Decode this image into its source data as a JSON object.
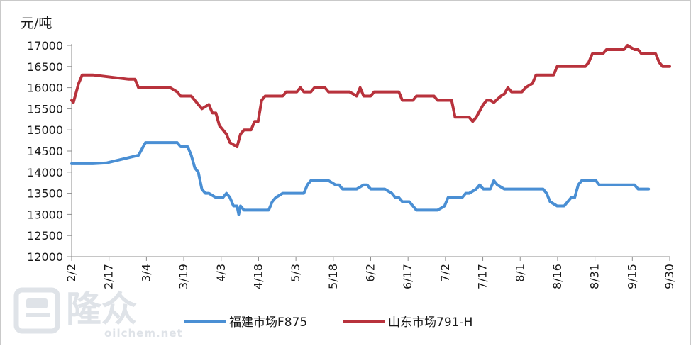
{
  "chart_data": {
    "type": "line",
    "ylabel": "元/吨",
    "ylim": [
      12000,
      17000
    ],
    "yticks": [
      12000,
      12500,
      13000,
      13500,
      14000,
      14500,
      15000,
      15500,
      16000,
      16500,
      17000
    ],
    "xticks": [
      "2/2",
      "2/17",
      "3/4",
      "3/19",
      "4/3",
      "4/18",
      "5/3",
      "5/18",
      "6/2",
      "6/17",
      "7/2",
      "7/17",
      "8/1",
      "8/16",
      "8/31",
      "9/15",
      "9/30"
    ],
    "legend_position": "bottom",
    "grid": false,
    "series": [
      {
        "name": "福建市场F875",
        "color": "#4a8fd4",
        "points": [
          [
            0,
            14200
          ],
          [
            5,
            14200
          ],
          [
            6,
            14200
          ],
          [
            10,
            14220
          ],
          [
            14,
            14300
          ],
          [
            18,
            14380
          ],
          [
            19,
            14400
          ],
          [
            20,
            14550
          ],
          [
            21,
            14700
          ],
          [
            23,
            14700
          ],
          [
            30,
            14700
          ],
          [
            31,
            14600
          ],
          [
            33,
            14600
          ],
          [
            34,
            14400
          ],
          [
            35,
            14100
          ],
          [
            36,
            14000
          ],
          [
            37,
            13600
          ],
          [
            38,
            13500
          ],
          [
            39,
            13500
          ],
          [
            40,
            13450
          ],
          [
            41,
            13400
          ],
          [
            43,
            13400
          ],
          [
            44,
            13500
          ],
          [
            45,
            13400
          ],
          [
            46,
            13200
          ],
          [
            47,
            13200
          ],
          [
            47.5,
            13000
          ],
          [
            48,
            13200
          ],
          [
            49,
            13100
          ],
          [
            53,
            13100
          ],
          [
            56,
            13100
          ],
          [
            57,
            13300
          ],
          [
            58,
            13400
          ],
          [
            59,
            13450
          ],
          [
            60,
            13500
          ],
          [
            63,
            13500
          ],
          [
            64,
            13500
          ],
          [
            66,
            13500
          ],
          [
            67,
            13700
          ],
          [
            68,
            13800
          ],
          [
            73,
            13800
          ],
          [
            74,
            13750
          ],
          [
            75,
            13700
          ],
          [
            76,
            13700
          ],
          [
            77,
            13600
          ],
          [
            80,
            13600
          ],
          [
            81,
            13600
          ],
          [
            82,
            13650
          ],
          [
            83,
            13700
          ],
          [
            84,
            13700
          ],
          [
            85,
            13600
          ],
          [
            89,
            13600
          ],
          [
            90,
            13550
          ],
          [
            91,
            13500
          ],
          [
            92,
            13400
          ],
          [
            93,
            13400
          ],
          [
            94,
            13300
          ],
          [
            96,
            13300
          ],
          [
            97,
            13200
          ],
          [
            98,
            13100
          ],
          [
            104,
            13100
          ],
          [
            105,
            13150
          ],
          [
            106,
            13200
          ],
          [
            107,
            13400
          ],
          [
            111,
            13400
          ],
          [
            112,
            13500
          ],
          [
            113,
            13500
          ],
          [
            114,
            13550
          ],
          [
            115,
            13600
          ],
          [
            116,
            13700
          ],
          [
            117,
            13600
          ],
          [
            119,
            13600
          ],
          [
            120,
            13800
          ],
          [
            121,
            13700
          ],
          [
            122,
            13650
          ],
          [
            123,
            13600
          ],
          [
            130,
            13600
          ],
          [
            131,
            13600
          ],
          [
            134,
            13600
          ],
          [
            135,
            13500
          ],
          [
            136,
            13300
          ],
          [
            137,
            13250
          ],
          [
            138,
            13200
          ],
          [
            140,
            13200
          ],
          [
            141,
            13300
          ],
          [
            142,
            13400
          ],
          [
            143,
            13400
          ],
          [
            144,
            13700
          ],
          [
            145,
            13800
          ],
          [
            149,
            13800
          ],
          [
            150,
            13700
          ],
          [
            160,
            13700
          ],
          [
            161,
            13600
          ],
          [
            164,
            13600
          ]
        ]
      },
      {
        "name": "山东市场791-H",
        "color": "#b8323c",
        "points": [
          [
            0,
            15700
          ],
          [
            0.5,
            15650
          ],
          [
            2,
            16100
          ],
          [
            3,
            16300
          ],
          [
            6,
            16300
          ],
          [
            11,
            16250
          ],
          [
            16,
            16200
          ],
          [
            18,
            16200
          ],
          [
            19,
            16000
          ],
          [
            20,
            16000
          ],
          [
            28,
            16000
          ],
          [
            29,
            15950
          ],
          [
            30,
            15900
          ],
          [
            31,
            15800
          ],
          [
            33,
            15800
          ],
          [
            34,
            15800
          ],
          [
            35,
            15700
          ],
          [
            36,
            15600
          ],
          [
            37,
            15500
          ],
          [
            38,
            15550
          ],
          [
            39,
            15600
          ],
          [
            40,
            15400
          ],
          [
            41,
            15400
          ],
          [
            42,
            15100
          ],
          [
            43,
            15000
          ],
          [
            44,
            14900
          ],
          [
            45,
            14700
          ],
          [
            46,
            14650
          ],
          [
            47,
            14600
          ],
          [
            48,
            14900
          ],
          [
            49,
            15000
          ],
          [
            51,
            15000
          ],
          [
            52,
            15200
          ],
          [
            53,
            15200
          ],
          [
            54,
            15700
          ],
          [
            55,
            15800
          ],
          [
            59,
            15800
          ],
          [
            60,
            15800
          ],
          [
            61,
            15900
          ],
          [
            64,
            15900
          ],
          [
            65,
            16000
          ],
          [
            66,
            15900
          ],
          [
            68,
            15900
          ],
          [
            69,
            16000
          ],
          [
            72,
            16000
          ],
          [
            73,
            15900
          ],
          [
            79,
            15900
          ],
          [
            80,
            15850
          ],
          [
            81,
            15800
          ],
          [
            82,
            16000
          ],
          [
            83,
            15800
          ],
          [
            85,
            15800
          ],
          [
            86,
            15900
          ],
          [
            93,
            15900
          ],
          [
            94,
            15700
          ],
          [
            97,
            15700
          ],
          [
            98,
            15800
          ],
          [
            103,
            15800
          ],
          [
            104,
            15700
          ],
          [
            108,
            15700
          ],
          [
            109,
            15300
          ],
          [
            110,
            15300
          ],
          [
            113,
            15300
          ],
          [
            114,
            15200
          ],
          [
            115,
            15300
          ],
          [
            117,
            15600
          ],
          [
            118,
            15700
          ],
          [
            119,
            15700
          ],
          [
            120,
            15650
          ],
          [
            122,
            15800
          ],
          [
            123,
            15850
          ],
          [
            124,
            16000
          ],
          [
            125,
            15900
          ],
          [
            128,
            15900
          ],
          [
            129,
            16000
          ],
          [
            130,
            16050
          ],
          [
            131,
            16100
          ],
          [
            132,
            16300
          ],
          [
            136,
            16300
          ],
          [
            137,
            16300
          ],
          [
            138,
            16500
          ],
          [
            146,
            16500
          ],
          [
            147,
            16600
          ],
          [
            148,
            16800
          ],
          [
            151,
            16800
          ],
          [
            152,
            16900
          ],
          [
            157,
            16900
          ],
          [
            158,
            17000
          ],
          [
            159,
            16950
          ],
          [
            160,
            16900
          ],
          [
            161,
            16900
          ],
          [
            162,
            16800
          ],
          [
            166,
            16800
          ],
          [
            167,
            16600
          ],
          [
            168,
            16500
          ],
          [
            170,
            16500
          ]
        ]
      }
    ],
    "watermark": {
      "mark": "隆众",
      "url": "oilchem.net"
    }
  }
}
